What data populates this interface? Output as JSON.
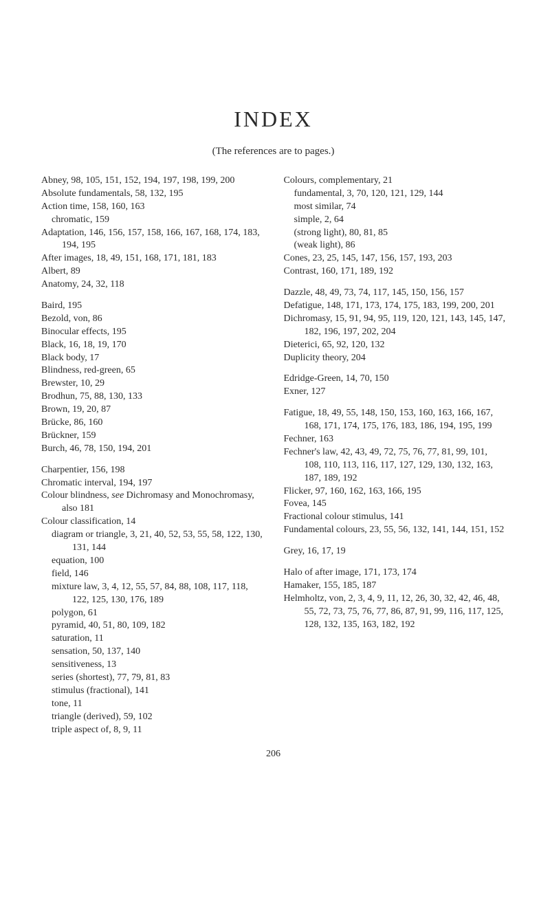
{
  "title": "INDEX",
  "subtitle": "(The references are to pages.)",
  "page_number": "206",
  "left_column": [
    {
      "type": "entry",
      "text": "Abney, 98, 105, 151, 152, 194, 197, 198, 199, 200"
    },
    {
      "type": "entry",
      "text": "Absolute fundamentals, 58, 132, 195"
    },
    {
      "type": "entry",
      "text": "Action time, 158, 160, 163"
    },
    {
      "type": "sub",
      "text": "chromatic, 159"
    },
    {
      "type": "entry",
      "text": "Adaptation, 146, 156, 157, 158, 166, 167, 168, 174, 183, 194, 195"
    },
    {
      "type": "entry",
      "text": "After images, 18, 49, 151, 168, 171, 181, 183"
    },
    {
      "type": "entry",
      "text": "Albert, 89"
    },
    {
      "type": "entry",
      "text": "Anatomy, 24, 32, 118"
    },
    {
      "type": "gap"
    },
    {
      "type": "entry",
      "text": "Baird, 195"
    },
    {
      "type": "entry",
      "text": "Bezold, von, 86"
    },
    {
      "type": "entry",
      "text": "Binocular effects, 195"
    },
    {
      "type": "entry",
      "text": "Black, 16, 18, 19, 170"
    },
    {
      "type": "entry",
      "text": "Black body, 17"
    },
    {
      "type": "entry",
      "text": "Blindness, red-green, 65"
    },
    {
      "type": "entry",
      "text": "Brewster, 10, 29"
    },
    {
      "type": "entry",
      "text": "Brodhun, 75, 88, 130, 133"
    },
    {
      "type": "entry",
      "text": "Brown, 19, 20, 87"
    },
    {
      "type": "entry",
      "text": "Brücke, 86, 160"
    },
    {
      "type": "entry",
      "text": "Brückner, 159"
    },
    {
      "type": "entry",
      "text": "Burch, 46, 78, 150, 194, 201"
    },
    {
      "type": "gap"
    },
    {
      "type": "entry",
      "text": "Charpentier, 156, 198"
    },
    {
      "type": "entry",
      "text": "Chromatic interval, 194, 197"
    },
    {
      "type": "entry",
      "text": "Colour blindness, see Dichromasy and Monochromasy, also 181",
      "italic_word": "see"
    },
    {
      "type": "entry",
      "text": "Colour classification, 14"
    },
    {
      "type": "sub",
      "text": "diagram or triangle, 3, 21, 40, 52, 53, 55, 58, 122, 130, 131, 144"
    },
    {
      "type": "sub",
      "text": "equation, 100"
    },
    {
      "type": "sub",
      "text": "field, 146"
    },
    {
      "type": "sub",
      "text": "mixture law, 3, 4, 12, 55, 57, 84, 88, 108, 117, 118, 122, 125, 130, 176, 189"
    },
    {
      "type": "sub",
      "text": "polygon, 61"
    },
    {
      "type": "sub",
      "text": "pyramid, 40, 51, 80, 109, 182"
    },
    {
      "type": "sub",
      "text": "saturation, 11"
    },
    {
      "type": "sub",
      "text": "sensation, 50, 137, 140"
    },
    {
      "type": "sub",
      "text": "sensitiveness, 13"
    },
    {
      "type": "sub",
      "text": "series (shortest), 77, 79, 81, 83"
    },
    {
      "type": "sub",
      "text": "stimulus (fractional), 141"
    },
    {
      "type": "sub",
      "text": "tone, 11"
    },
    {
      "type": "sub",
      "text": "triangle (derived), 59, 102"
    },
    {
      "type": "sub",
      "text": "triple aspect of, 8, 9, 11"
    }
  ],
  "right_column": [
    {
      "type": "entry",
      "text": "Colours, complementary, 21"
    },
    {
      "type": "sub",
      "text": "fundamental, 3, 70, 120, 121, 129, 144"
    },
    {
      "type": "sub",
      "text": "most similar, 74"
    },
    {
      "type": "sub",
      "text": "simple, 2, 64"
    },
    {
      "type": "sub",
      "text": "(strong light), 80, 81, 85"
    },
    {
      "type": "sub",
      "text": "(weak light), 86"
    },
    {
      "type": "entry",
      "text": "Cones, 23, 25, 145, 147, 156, 157, 193, 203"
    },
    {
      "type": "entry",
      "text": "Contrast, 160, 171, 189, 192"
    },
    {
      "type": "gap"
    },
    {
      "type": "entry",
      "text": "Dazzle, 48, 49, 73, 74, 117, 145, 150, 156, 157"
    },
    {
      "type": "entry",
      "text": "Defatigue, 148, 171, 173, 174, 175, 183, 199, 200, 201"
    },
    {
      "type": "entry",
      "text": "Dichromasy, 15, 91, 94, 95, 119, 120, 121, 143, 145, 147, 182, 196, 197, 202, 204"
    },
    {
      "type": "entry",
      "text": "Dieterici, 65, 92, 120, 132"
    },
    {
      "type": "entry",
      "text": "Duplicity theory, 204"
    },
    {
      "type": "gap"
    },
    {
      "type": "entry",
      "text": "Edridge-Green, 14, 70, 150"
    },
    {
      "type": "entry",
      "text": "Exner, 127"
    },
    {
      "type": "gap"
    },
    {
      "type": "entry",
      "text": "Fatigue, 18, 49, 55, 148, 150, 153, 160, 163, 166, 167, 168, 171, 174, 175, 176, 183, 186, 194, 195, 199"
    },
    {
      "type": "entry",
      "text": "Fechner, 163"
    },
    {
      "type": "entry",
      "text": "Fechner's law, 42, 43, 49, 72, 75, 76, 77, 81, 99, 101, 108, 110, 113, 116, 117, 127, 129, 130, 132, 163, 187, 189, 192"
    },
    {
      "type": "entry",
      "text": "Flicker, 97, 160, 162, 163, 166, 195"
    },
    {
      "type": "entry",
      "text": "Fovea, 145"
    },
    {
      "type": "entry",
      "text": "Fractional colour stimulus, 141"
    },
    {
      "type": "entry",
      "text": "Fundamental colours, 23, 55, 56, 132, 141, 144, 151, 152"
    },
    {
      "type": "gap"
    },
    {
      "type": "entry",
      "text": "Grey, 16, 17, 19"
    },
    {
      "type": "gap"
    },
    {
      "type": "entry",
      "text": "Halo of after image, 171, 173, 174"
    },
    {
      "type": "entry",
      "text": "Hamaker, 155, 185, 187"
    },
    {
      "type": "entry",
      "text": "Helmholtz, von, 2, 3, 4, 9, 11, 12, 26, 30, 32, 42, 46, 48, 55, 72, 73, 75, 76, 77, 86, 87, 91, 99, 116, 117, 125, 128, 132, 135, 163, 182, 192"
    }
  ]
}
